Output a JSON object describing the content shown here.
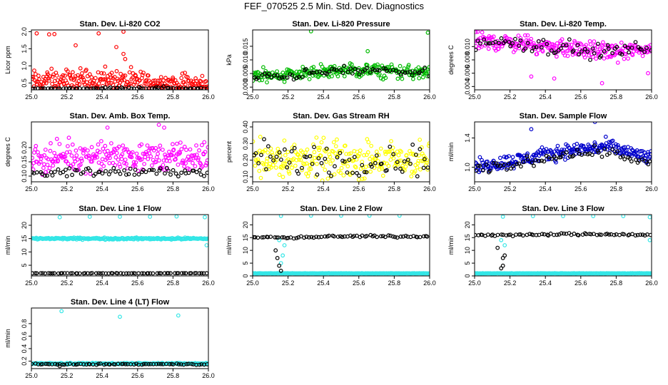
{
  "title": "FEF_070525  2.5 Min. Std. Dev. Diagnostics",
  "colors": {
    "background": "#ffffff",
    "axis": "#000000",
    "reference": "#000000"
  },
  "chart_data": [
    {
      "type": "scatter",
      "title": "Stan. Dev. Li-820 CO2",
      "xlabel": "",
      "ylabel": "Licor ppm",
      "xlim": [
        25.0,
        26.0
      ],
      "ylim": [
        0.3,
        2.05
      ],
      "xticks": [
        "25.0",
        "25.2",
        "25.4",
        "25.6",
        "25.8",
        "26.0"
      ],
      "yticks": [
        "0.5",
        "1.0",
        "1.5",
        "2.0"
      ],
      "series": [
        {
          "color": "#ff0000",
          "baseline": 0.55,
          "spread": 0.22,
          "trend": [
            0.55,
            0.6,
            0.55,
            0.5,
            0.45
          ],
          "outliers": [
            [
              25.03,
              1.95
            ],
            [
              25.1,
              1.92
            ],
            [
              25.13,
              1.93
            ],
            [
              25.38,
              1.95
            ],
            [
              25.52,
              2.0
            ],
            [
              25.25,
              1.6
            ],
            [
              25.48,
              1.55
            ],
            [
              25.52,
              1.35
            ],
            [
              25.53,
              1.2
            ]
          ]
        },
        {
          "color": "#000000",
          "baseline": 0.3,
          "spread": 0.03,
          "trend": [
            0.3,
            0.32,
            0.35,
            0.35,
            0.32
          ],
          "outliers": []
        }
      ]
    },
    {
      "type": "scatter",
      "title": "Stan. Dev. Li-820 Pressure",
      "xlabel": "",
      "ylabel": "kPa",
      "xlim": [
        25.0,
        26.0
      ],
      "ylim": [
        -0.001,
        0.021
      ],
      "xticks": [
        "25.0",
        "25.2",
        "25.4",
        "25.6",
        "25.8",
        "26.0"
      ],
      "yticks": [
        "0.000",
        "0.005",
        "0.010",
        "0.015"
      ],
      "series": [
        {
          "color": "#00bb00",
          "baseline": 0.005,
          "spread": 0.0018,
          "trend": [
            0.004,
            0.005,
            0.006,
            0.006,
            0.005
          ],
          "outliers": [
            [
              25.33,
              0.0205
            ],
            [
              25.65,
              0.0132
            ],
            [
              25.99,
              0.02
            ]
          ]
        },
        {
          "color": "#000000",
          "baseline": 0.005,
          "spread": 0.0012,
          "trend": [
            0.0035,
            0.0045,
            0.006,
            0.006,
            0.005
          ],
          "outliers": []
        }
      ]
    },
    {
      "type": "scatter",
      "title": "Stan. Dev. Li-820 Temp.",
      "xlabel": "",
      "ylabel": "degrees C",
      "xlim": [
        25.0,
        26.0
      ],
      "ylim": [
        0.0035,
        0.0125
      ],
      "xticks": [
        "25.0",
        "25.2",
        "25.4",
        "25.6",
        "25.8",
        "26.0"
      ],
      "yticks": [
        "0.004",
        "0.006",
        "0.008",
        "0.010"
      ],
      "series": [
        {
          "color": "#ff00ff",
          "baseline": 0.0102,
          "spread": 0.0009,
          "trend": [
            0.0108,
            0.0105,
            0.0098,
            0.0092,
            0.0095
          ],
          "outliers": [
            [
              25.32,
              0.0055
            ],
            [
              25.45,
              0.0052
            ],
            [
              25.72,
              0.0045
            ],
            [
              25.98,
              0.006
            ]
          ]
        },
        {
          "color": "#000000",
          "baseline": 0.0102,
          "spread": 0.0008,
          "trend": [
            0.0108,
            0.0105,
            0.0098,
            0.0092,
            0.0098
          ],
          "outliers": []
        }
      ]
    },
    {
      "type": "scatter",
      "title": "Stan. Dev. Amb. Box Temp.",
      "xlabel": "",
      "ylabel": "degrees C",
      "xlim": [
        25.0,
        26.0
      ],
      "ylim": [
        0.08,
        0.29
      ],
      "xticks": [
        "25.0",
        "25.2",
        "25.4",
        "25.6",
        "25.8",
        "26.0"
      ],
      "yticks": [
        "0.10",
        "0.15",
        "0.20"
      ],
      "series": [
        {
          "color": "#ff00ff",
          "baseline": 0.165,
          "spread": 0.035,
          "trend": [
            0.16,
            0.17,
            0.17,
            0.165,
            0.165
          ],
          "outliers": [
            [
              25.72,
              0.28
            ],
            [
              25.75,
              0.27
            ],
            [
              25.43,
              0.27
            ]
          ]
        },
        {
          "color": "#000000",
          "baseline": 0.115,
          "spread": 0.01,
          "trend": [
            0.11,
            0.115,
            0.115,
            0.115,
            0.115
          ],
          "outliers": []
        }
      ]
    },
    {
      "type": "scatter",
      "title": "Stan. Dev. Gas Stream RH",
      "xlabel": "",
      "ylabel": "percent",
      "xlim": [
        25.0,
        26.0
      ],
      "ylim": [
        0.07,
        0.43
      ],
      "xticks": [
        "25.0",
        "25.2",
        "25.4",
        "25.6",
        "25.8",
        "26.0"
      ],
      "yticks": [
        "0.10",
        "0.20",
        "0.30",
        "0.40"
      ],
      "series": [
        {
          "color": "#ffff00",
          "baseline": 0.2,
          "spread": 0.08,
          "trend": [
            0.22,
            0.2,
            0.2,
            0.2,
            0.2
          ],
          "outliers": []
        },
        {
          "color": "#000000",
          "baseline": 0.2,
          "spread": 0.07,
          "trend": [
            0.22,
            0.2,
            0.2,
            0.2,
            0.2
          ],
          "outliers": []
        }
      ]
    },
    {
      "type": "scatter",
      "title": "Stan. Dev. Sample Flow",
      "xlabel": "",
      "ylabel": "ml/min",
      "xlim": [
        25.0,
        26.0
      ],
      "ylim": [
        0.8,
        1.62
      ],
      "xticks": [
        "25.0",
        "25.2",
        "25.4",
        "25.6",
        "25.8",
        "26.0"
      ],
      "yticks": [
        "1.0",
        "1.4"
      ],
      "series": [
        {
          "color": "#0000cc",
          "baseline": 1.15,
          "spread": 0.07,
          "trend": [
            1.0,
            1.1,
            1.22,
            1.28,
            1.12
          ],
          "outliers": [
            [
              25.32,
              1.52
            ],
            [
              25.68,
              1.62
            ]
          ]
        },
        {
          "color": "#000000",
          "baseline": 1.1,
          "spread": 0.05,
          "trend": [
            0.95,
            1.05,
            1.18,
            1.22,
            1.05
          ],
          "outliers": []
        }
      ]
    },
    {
      "type": "scatter",
      "title": "Stan. Dev. Line 1 Flow",
      "xlabel": "",
      "ylabel": "ml/min",
      "xlim": [
        25.0,
        26.0
      ],
      "ylim": [
        1,
        24
      ],
      "xticks": [
        "25.0",
        "25.2",
        "25.4",
        "25.6",
        "25.8",
        "26.0"
      ],
      "yticks": [
        "5",
        "10",
        "15",
        "20"
      ],
      "series": [
        {
          "color": "#33e6e6",
          "baseline": 15,
          "spread": 0.25,
          "trend": [
            15,
            15,
            15,
            15,
            15
          ],
          "outliers": [
            [
              25.16,
              23
            ],
            [
              25.33,
              23.2
            ],
            [
              25.5,
              23.2
            ],
            [
              25.67,
              23.2
            ],
            [
              25.82,
              23.3
            ],
            [
              25.98,
              23
            ],
            [
              25.99,
              12.5
            ]
          ]
        },
        {
          "color": "#000000",
          "baseline": 2,
          "spread": 0.05,
          "trend": [
            2,
            2,
            2,
            2,
            2
          ],
          "outliers": []
        }
      ]
    },
    {
      "type": "scatter",
      "title": "Stan. Dev. Line 2 Flow",
      "xlabel": "",
      "ylabel": "ml/min",
      "xlim": [
        25.0,
        26.0
      ],
      "ylim": [
        0,
        24
      ],
      "xticks": [
        "25.0",
        "25.2",
        "25.4",
        "25.6",
        "25.8",
        "26.0"
      ],
      "yticks": [
        "0",
        "5",
        "10",
        "15",
        "20"
      ],
      "series": [
        {
          "color": "#33e6e6",
          "baseline": 1,
          "spread": 0.05,
          "trend": [
            1,
            1,
            1,
            1,
            1
          ],
          "outliers": [
            [
              25.16,
              23.5
            ],
            [
              25.33,
              23.6
            ],
            [
              25.5,
              23.6
            ],
            [
              25.66,
              23.6
            ],
            [
              25.83,
              23.6
            ],
            [
              25.16,
              5
            ],
            [
              25.17,
              8
            ],
            [
              25.18,
              12
            ],
            [
              25.15,
              14
            ]
          ]
        },
        {
          "color": "#000000",
          "baseline": 15.5,
          "spread": 0.3,
          "trend": [
            15,
            15,
            15.5,
            15.5,
            15.5
          ],
          "outliers": [
            [
              25.13,
              10
            ],
            [
              25.14,
              7
            ],
            [
              25.15,
              4
            ],
            [
              25.16,
              2
            ]
          ]
        }
      ]
    },
    {
      "type": "scatter",
      "title": "Stan. Dev. Line 3 Flow",
      "xlabel": "",
      "ylabel": "ml/min",
      "xlim": [
        25.0,
        26.0
      ],
      "ylim": [
        0,
        24
      ],
      "xticks": [
        "25.0",
        "25.2",
        "25.4",
        "25.6",
        "25.8",
        "26.0"
      ],
      "yticks": [
        "0",
        "5",
        "10",
        "15",
        "20"
      ],
      "series": [
        {
          "color": "#33e6e6",
          "baseline": 1,
          "spread": 0.05,
          "trend": [
            1,
            1,
            1,
            1,
            1
          ],
          "outliers": [
            [
              25.16,
              23.2
            ],
            [
              25.33,
              23.4
            ],
            [
              25.5,
              23.4
            ],
            [
              25.67,
              23.4
            ],
            [
              25.84,
              23.4
            ],
            [
              25.99,
              23
            ],
            [
              25.15,
              14
            ],
            [
              25.17,
              12
            ],
            [
              25.99,
              14
            ]
          ]
        },
        {
          "color": "#000000",
          "baseline": 16,
          "spread": 0.3,
          "trend": [
            16,
            16,
            16.3,
            16.3,
            16
          ],
          "outliers": [
            [
              25.15,
              3
            ],
            [
              25.16,
              4
            ],
            [
              25.16,
              7
            ],
            [
              25.17,
              8
            ],
            [
              25.13,
              11
            ]
          ]
        }
      ]
    },
    {
      "type": "scatter",
      "title": "Stan. Dev. Line 4 (LT) Flow",
      "xlabel": "",
      "ylabel": "ml/min",
      "xlim": [
        25.0,
        26.0
      ],
      "ylim": [
        0.08,
        1.05
      ],
      "xticks": [
        "25.0",
        "25.2",
        "25.4",
        "25.6",
        "25.8",
        "26.0"
      ],
      "yticks": [
        "0.2",
        "0.4",
        "0.6",
        "0.8"
      ],
      "series": [
        {
          "color": "#33e6e6",
          "baseline": 0.16,
          "spread": 0.008,
          "trend": [
            0.16,
            0.16,
            0.16,
            0.16,
            0.16
          ],
          "outliers": [
            [
              25.17,
              1.0
            ],
            [
              25.5,
              0.91
            ],
            [
              25.83,
              0.93
            ]
          ]
        },
        {
          "color": "#000000",
          "baseline": 0.15,
          "spread": 0.006,
          "trend": [
            0.15,
            0.15,
            0.15,
            0.15,
            0.15
          ],
          "outliers": [
            [
              25.16,
              0.12
            ]
          ]
        }
      ]
    }
  ]
}
